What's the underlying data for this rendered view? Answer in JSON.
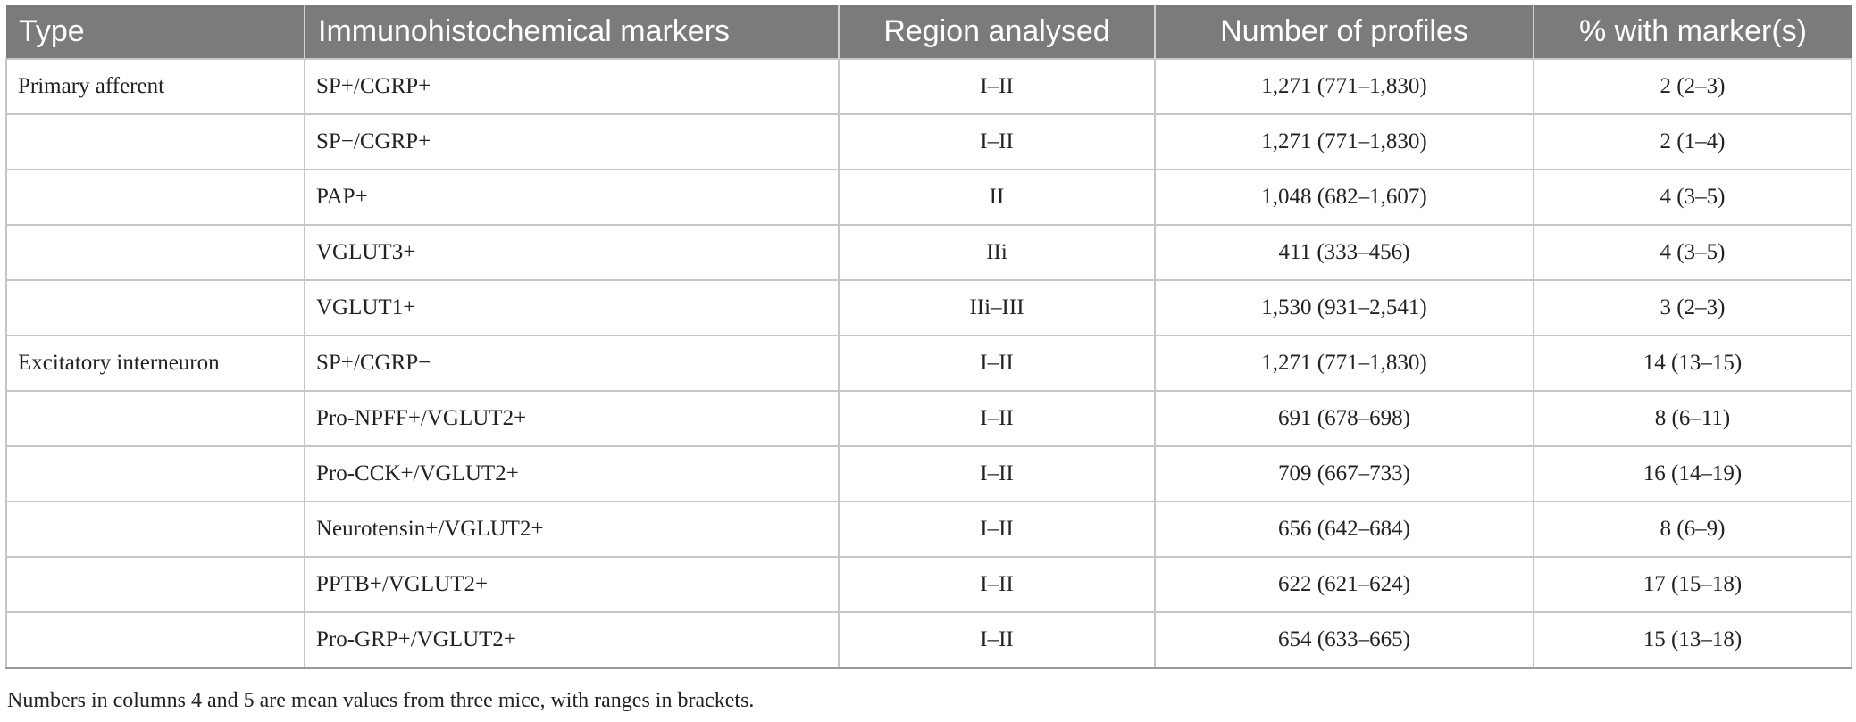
{
  "table": {
    "header": [
      "Type",
      "Immunohistochemical markers",
      "Region analysed",
      "Number of profiles",
      "% with marker(s)"
    ],
    "rows": [
      {
        "type": "Primary afferent",
        "markers": "SP+/CGRP+",
        "region": "I–II",
        "number": "1,271 (771–1,830)",
        "percent": "2 (2–3)"
      },
      {
        "markers": "SP−/CGRP+",
        "region": "I–II",
        "number": "1,271 (771–1,830)",
        "percent": "2 (1–4)"
      },
      {
        "markers": "PAP+",
        "region": "II",
        "number": "1,048 (682–1,607)",
        "percent": "4 (3–5)"
      },
      {
        "markers": "VGLUT3+",
        "region": "IIi",
        "number": "411 (333–456)",
        "percent": "4 (3–5)"
      },
      {
        "markers": "VGLUT1+",
        "region": "IIi–III",
        "number": "1,530 (931–2,541)",
        "percent": "3 (2–3)"
      },
      {
        "type": "Excitatory interneuron",
        "markers": "SP+/CGRP−",
        "region": "I–II",
        "number": "1,271 (771–1,830)",
        "percent": "14 (13–15)"
      },
      {
        "markers": "Pro-NPFF+/VGLUT2+",
        "region": "I–II",
        "number": "691 (678–698)",
        "percent": "8 (6–11)"
      },
      {
        "markers": "Pro-CCK+/VGLUT2+",
        "region": "I–II",
        "number": "709 (667–733)",
        "percent": "16 (14–19)"
      },
      {
        "markers": "Neurotensin+/VGLUT2+",
        "region": "I–II",
        "number": "656 (642–684)",
        "percent": "8 (6–9)"
      },
      {
        "markers": "PPTB+/VGLUT2+",
        "region": "I–II",
        "number": "622 (621–624)",
        "percent": "17 (15–18)"
      },
      {
        "markers": "Pro-GRP+/VGLUT2+",
        "region": "I–II",
        "number": "654 (633–665)",
        "percent": "15 (13–18)"
      }
    ]
  },
  "footnote": "Numbers in columns 4 and 5 are mean values from three mice, with ranges in brackets."
}
